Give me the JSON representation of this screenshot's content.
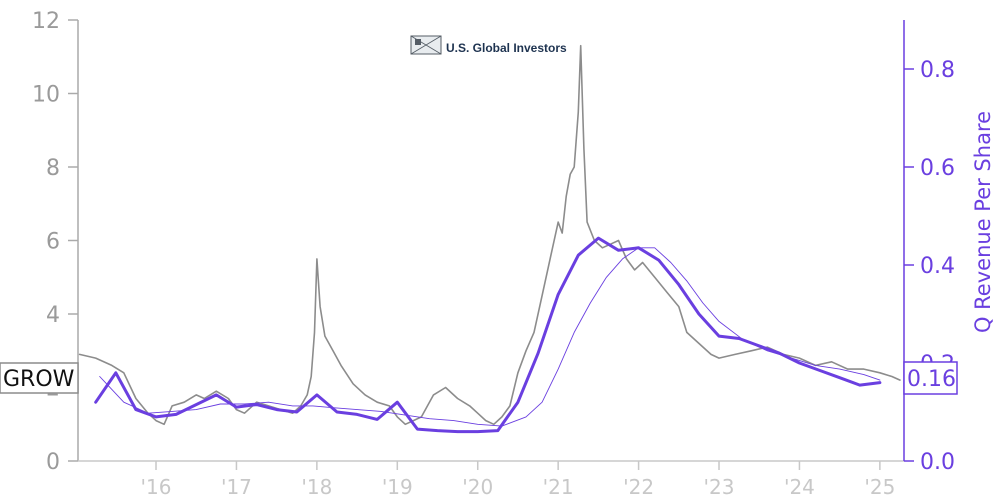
{
  "logo": {
    "text": "U.S. Global Investors"
  },
  "colors": {
    "price": "#8c8c8c",
    "revenue": "#6a3fe0",
    "left_axis": "#aaaaaa",
    "x_axis": "#c8c8c8"
  },
  "chart_data": {
    "type": "line",
    "title": "",
    "x_tick_labels": [
      "'16",
      "'17",
      "'18",
      "'19",
      "'20",
      "'21",
      "'22",
      "'23",
      "'24",
      "'25"
    ],
    "x_tick_years": [
      2016,
      2017,
      2018,
      2019,
      2020,
      2021,
      2022,
      2023,
      2024,
      2025
    ],
    "x_range": [
      2015.03,
      2025.3
    ],
    "left_axis": {
      "ylim": [
        0,
        12
      ],
      "ticks": [
        0,
        2,
        4,
        6,
        8,
        10,
        12
      ],
      "tick_labels": [
        "0",
        "2",
        "4",
        "6",
        "8",
        "10",
        "12"
      ]
    },
    "right_axis": {
      "label": "Q Revenue Per Share",
      "ylim": [
        0,
        0.9
      ],
      "ticks": [
        0.0,
        0.2,
        0.4,
        0.6,
        0.8
      ],
      "tick_labels": [
        "0.0",
        "0.2",
        "0.4",
        "0.6",
        "0.8"
      ]
    },
    "series": [
      {
        "name": "GROW",
        "axis": "left",
        "last_value_label": "GROW",
        "x": [
          2015.05,
          2015.25,
          2015.45,
          2015.6,
          2015.75,
          2015.9,
          2016.0,
          2016.1,
          2016.2,
          2016.35,
          2016.5,
          2016.6,
          2016.75,
          2016.9,
          2017.0,
          2017.1,
          2017.25,
          2017.4,
          2017.55,
          2017.7,
          2017.8,
          2017.88,
          2017.93,
          2017.97,
          2018.0,
          2018.04,
          2018.1,
          2018.2,
          2018.3,
          2018.45,
          2018.6,
          2018.75,
          2018.9,
          2019.0,
          2019.1,
          2019.2,
          2019.3,
          2019.45,
          2019.6,
          2019.75,
          2019.9,
          2020.0,
          2020.1,
          2020.2,
          2020.3,
          2020.4,
          2020.5,
          2020.6,
          2020.7,
          2020.8,
          2020.9,
          2021.0,
          2021.05,
          2021.1,
          2021.15,
          2021.2,
          2021.25,
          2021.28,
          2021.32,
          2021.36,
          2021.45,
          2021.55,
          2021.65,
          2021.75,
          2021.85,
          2021.95,
          2022.05,
          2022.2,
          2022.35,
          2022.5,
          2022.6,
          2022.75,
          2022.9,
          2023.0,
          2023.2,
          2023.4,
          2023.6,
          2023.8,
          2024.0,
          2024.2,
          2024.4,
          2024.6,
          2024.8,
          2025.0,
          2025.15,
          2025.25
        ],
        "y": [
          2.9,
          2.8,
          2.6,
          2.4,
          1.7,
          1.3,
          1.1,
          1.0,
          1.5,
          1.6,
          1.8,
          1.7,
          1.9,
          1.7,
          1.4,
          1.3,
          1.6,
          1.5,
          1.4,
          1.3,
          1.5,
          1.8,
          2.3,
          3.5,
          5.5,
          4.2,
          3.4,
          3.0,
          2.6,
          2.1,
          1.8,
          1.6,
          1.5,
          1.2,
          1.0,
          1.1,
          1.2,
          1.8,
          2.0,
          1.7,
          1.5,
          1.3,
          1.1,
          1.0,
          1.2,
          1.5,
          2.4,
          3.0,
          3.5,
          4.5,
          5.5,
          6.5,
          6.2,
          7.2,
          7.8,
          8.0,
          9.5,
          11.3,
          8.5,
          6.5,
          6.0,
          5.8,
          5.9,
          6.0,
          5.5,
          5.2,
          5.4,
          5.0,
          4.6,
          4.2,
          3.5,
          3.2,
          2.9,
          2.8,
          2.9,
          3.0,
          3.1,
          2.9,
          2.8,
          2.6,
          2.7,
          2.5,
          2.5,
          2.4,
          2.3,
          2.2
        ]
      },
      {
        "name": "",
        "axis": "left",
        "x": [
          2015.3,
          2015.6,
          2015.9,
          2016.2,
          2016.5,
          2016.8,
          2017.1,
          2017.4,
          2017.7,
          2017.95,
          2018.2,
          2018.5,
          2018.8,
          2019.1,
          2019.4,
          2019.7,
          2020.0,
          2020.3,
          2020.6,
          2020.8,
          2021.0,
          2021.2,
          2021.4,
          2021.6,
          2021.8,
          2022.0,
          2022.2,
          2022.4,
          2022.6,
          2022.8,
          2023.0,
          2023.3,
          2023.6,
          2023.9,
          2024.2,
          2024.5,
          2024.8,
          2025.0
        ],
        "y": [
          2.3,
          1.6,
          1.3,
          1.35,
          1.4,
          1.55,
          1.55,
          1.6,
          1.5,
          1.5,
          1.45,
          1.4,
          1.35,
          1.25,
          1.15,
          1.1,
          1.0,
          0.95,
          1.2,
          1.6,
          2.5,
          3.5,
          4.3,
          5.0,
          5.5,
          5.8,
          5.8,
          5.4,
          4.9,
          4.3,
          3.8,
          3.3,
          3.0,
          2.8,
          2.6,
          2.5,
          2.35,
          2.2
        ]
      },
      {
        "name": "Q Revenue Per Share",
        "axis": "right",
        "last_value_label": "0.16",
        "x": [
          2015.25,
          2015.5,
          2015.75,
          2016.0,
          2016.25,
          2016.5,
          2016.75,
          2017.0,
          2017.25,
          2017.5,
          2017.75,
          2018.0,
          2018.25,
          2018.5,
          2018.75,
          2019.0,
          2019.25,
          2019.5,
          2019.75,
          2020.0,
          2020.25,
          2020.5,
          2020.75,
          2021.0,
          2021.25,
          2021.5,
          2021.75,
          2022.0,
          2022.25,
          2022.5,
          2022.75,
          2023.0,
          2023.25,
          2023.5,
          2023.75,
          2024.0,
          2024.25,
          2024.5,
          2024.75,
          2025.0
        ],
        "y": [
          0.12,
          0.18,
          0.105,
          0.09,
          0.095,
          0.115,
          0.135,
          0.11,
          0.115,
          0.105,
          0.1,
          0.135,
          0.1,
          0.095,
          0.085,
          0.12,
          0.065,
          0.062,
          0.06,
          0.06,
          0.062,
          0.12,
          0.22,
          0.34,
          0.42,
          0.455,
          0.43,
          0.435,
          0.41,
          0.36,
          0.3,
          0.255,
          0.25,
          0.235,
          0.22,
          0.2,
          0.185,
          0.17,
          0.155,
          0.16
        ]
      }
    ]
  }
}
